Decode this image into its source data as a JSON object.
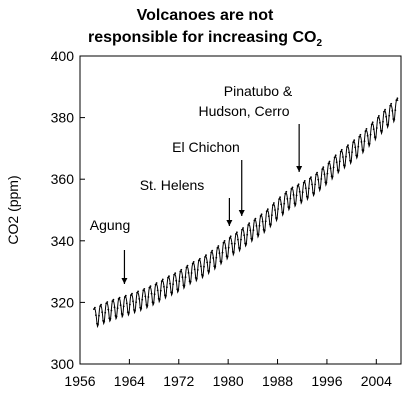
{
  "chart_data": {
    "type": "line",
    "title_line1": "Volcanoes are not",
    "title_line2_main": "responsible for increasing CO",
    "title_line2_sub": "2",
    "xlabel": "",
    "ylabel": "CO2 (ppm)",
    "xlim": [
      1956,
      2008
    ],
    "ylim": [
      300,
      400
    ],
    "x_ticks": [
      "1956",
      "1964",
      "1972",
      "1980",
      "1988",
      "1996",
      "2004"
    ],
    "y_ticks": [
      "300",
      "320",
      "340",
      "360",
      "380",
      "400"
    ],
    "grid": false,
    "legend": "none",
    "series": [
      {
        "description_trend": "Mauna Loa monthly CO2 with seasonal cycle",
        "x": [
          1958,
          1960,
          1962,
          1964,
          1966,
          1968,
          1970,
          1972,
          1974,
          1976,
          1978,
          1980,
          1982,
          1984,
          1986,
          1988,
          1990,
          1992,
          1994,
          1996,
          1998,
          2000,
          2002,
          2004,
          2006,
          2007.5
        ],
        "y": [
          315.0,
          316.9,
          318.4,
          319.6,
          321.1,
          322.9,
          325.2,
          327.1,
          329.8,
          331.8,
          334.7,
          338.0,
          340.6,
          343.7,
          346.5,
          350.5,
          354.0,
          356.0,
          358.5,
          362.0,
          366.0,
          369.0,
          372.5,
          376.8,
          380.8,
          383.5
        ],
        "seasonal_amplitude_ppm": 3.2
      }
    ],
    "annotations": [
      {
        "label": "Agung",
        "year": 1963.2
      },
      {
        "label": "St. Helens",
        "year": 1980.2
      },
      {
        "label": "El Chichon",
        "year": 1982.2
      },
      {
        "label": "Pinatubo &",
        "label2": "Hudson, Cerro",
        "year": 1991.5
      }
    ],
    "colors": {
      "line": "#000000",
      "axis": "#000000",
      "background": "#ffffff"
    }
  }
}
